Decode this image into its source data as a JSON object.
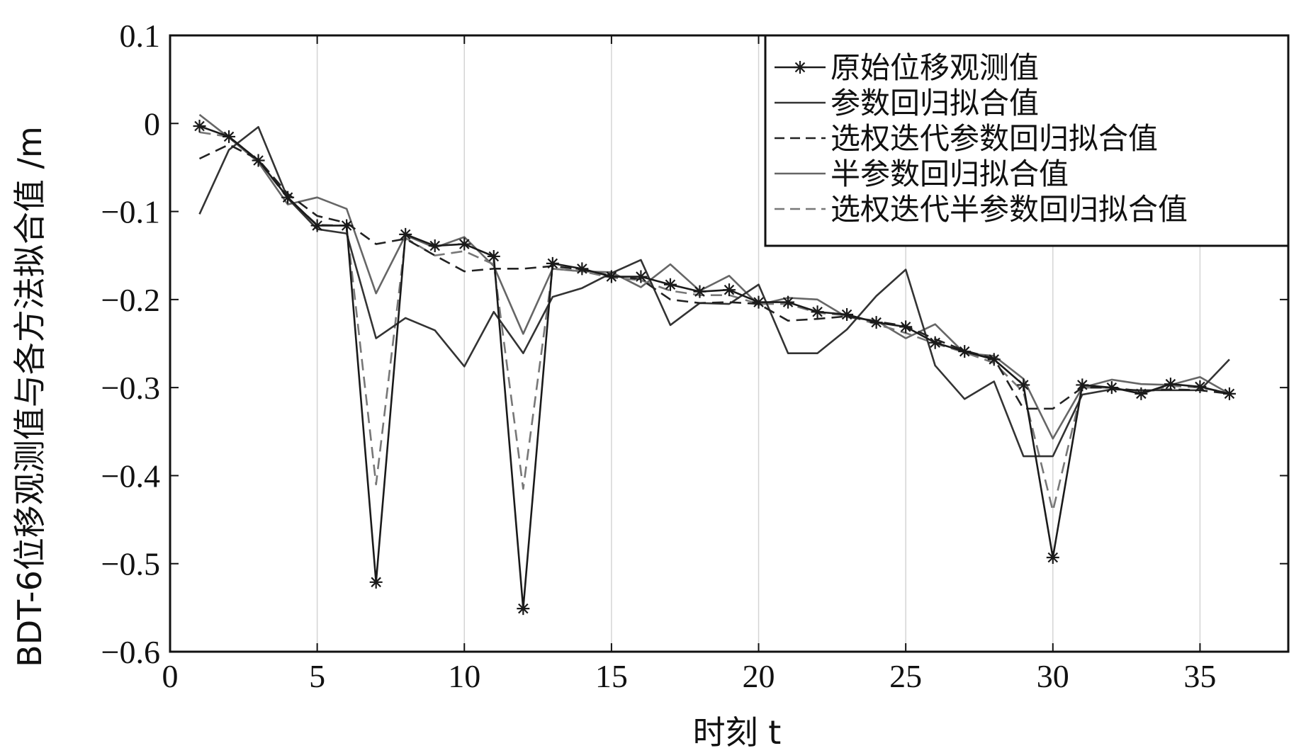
{
  "chart_data": {
    "type": "line",
    "xlabel": "时刻 t",
    "ylabel": "BDT-6位移观测值与各方法拟合值 /m",
    "xlim": [
      0,
      38
    ],
    "ylim": [
      -0.6,
      0.1
    ],
    "xticks": [
      0,
      5,
      10,
      15,
      20,
      25,
      30,
      35
    ],
    "xtick_labels": [
      "0",
      "5",
      "10",
      "15",
      "20",
      "25",
      "30",
      "35"
    ],
    "yticks": [
      0.1,
      0,
      -0.1,
      -0.2,
      -0.3,
      -0.4,
      -0.5,
      -0.6
    ],
    "ytick_labels": [
      "0.1",
      "0",
      "−0.1",
      "−0.2",
      "−0.3",
      "−0.4",
      "−0.5",
      "−0.6"
    ],
    "grid": "vertical",
    "legend_position": "top-right",
    "x": [
      1,
      2,
      3,
      4,
      5,
      6,
      7,
      8,
      9,
      10,
      11,
      12,
      13,
      14,
      15,
      16,
      17,
      18,
      19,
      20,
      21,
      22,
      23,
      24,
      25,
      26,
      27,
      28,
      29,
      30,
      31,
      32,
      33,
      34,
      35,
      36
    ],
    "series": [
      {
        "name": "原始位移观测值",
        "color": "#1a1a1a",
        "style": "solid-star",
        "values": [
          -0.003,
          -0.015,
          -0.042,
          -0.084,
          -0.116,
          -0.116,
          -0.521,
          -0.126,
          -0.139,
          -0.137,
          -0.151,
          -0.551,
          -0.159,
          -0.165,
          -0.174,
          -0.174,
          -0.183,
          -0.191,
          -0.189,
          -0.203,
          -0.203,
          -0.214,
          -0.217,
          -0.226,
          -0.231,
          -0.249,
          -0.259,
          -0.268,
          -0.297,
          -0.493,
          -0.297,
          -0.3,
          -0.307,
          -0.296,
          -0.299,
          -0.307
        ]
      },
      {
        "name": "参数回归拟合值",
        "color": "#333333",
        "style": "solid",
        "values": [
          -0.103,
          -0.03,
          -0.004,
          -0.085,
          -0.12,
          -0.125,
          -0.244,
          -0.221,
          -0.235,
          -0.276,
          -0.214,
          -0.261,
          -0.197,
          -0.187,
          -0.17,
          -0.155,
          -0.229,
          -0.204,
          -0.205,
          -0.183,
          -0.261,
          -0.261,
          -0.234,
          -0.196,
          -0.166,
          -0.275,
          -0.313,
          -0.293,
          -0.378,
          -0.378,
          -0.308,
          -0.302,
          -0.303,
          -0.303,
          -0.303,
          -0.268
        ]
      },
      {
        "name": "选权迭代参数回归拟合值",
        "color": "#222222",
        "style": "dashed",
        "values": [
          -0.04,
          -0.024,
          -0.041,
          -0.08,
          -0.105,
          -0.113,
          -0.137,
          -0.131,
          -0.15,
          -0.168,
          -0.165,
          -0.165,
          -0.162,
          -0.166,
          -0.173,
          -0.177,
          -0.2,
          -0.204,
          -0.203,
          -0.205,
          -0.224,
          -0.222,
          -0.219,
          -0.225,
          -0.23,
          -0.245,
          -0.258,
          -0.267,
          -0.324,
          -0.324,
          -0.3,
          -0.3,
          -0.304,
          -0.302,
          -0.303,
          -0.307
        ]
      },
      {
        "name": "半参数回归拟合值",
        "color": "#666666",
        "style": "solid",
        "values": [
          0.01,
          -0.016,
          -0.044,
          -0.092,
          -0.084,
          -0.097,
          -0.193,
          -0.127,
          -0.141,
          -0.129,
          -0.162,
          -0.239,
          -0.165,
          -0.168,
          -0.169,
          -0.186,
          -0.16,
          -0.19,
          -0.173,
          -0.206,
          -0.198,
          -0.2,
          -0.22,
          -0.224,
          -0.244,
          -0.228,
          -0.261,
          -0.264,
          -0.29,
          -0.358,
          -0.3,
          -0.291,
          -0.296,
          -0.297,
          -0.288,
          -0.307
        ]
      },
      {
        "name": "选权迭代半参数回归拟合值",
        "color": "#777777",
        "style": "dashed",
        "values": [
          -0.01,
          -0.015,
          -0.042,
          -0.085,
          -0.115,
          -0.116,
          -0.41,
          -0.13,
          -0.15,
          -0.145,
          -0.16,
          -0.415,
          -0.165,
          -0.168,
          -0.175,
          -0.178,
          -0.19,
          -0.195,
          -0.195,
          -0.205,
          -0.205,
          -0.215,
          -0.218,
          -0.228,
          -0.238,
          -0.25,
          -0.26,
          -0.272,
          -0.305,
          -0.44,
          -0.3,
          -0.3,
          -0.306,
          -0.298,
          -0.3,
          -0.306
        ]
      }
    ]
  }
}
